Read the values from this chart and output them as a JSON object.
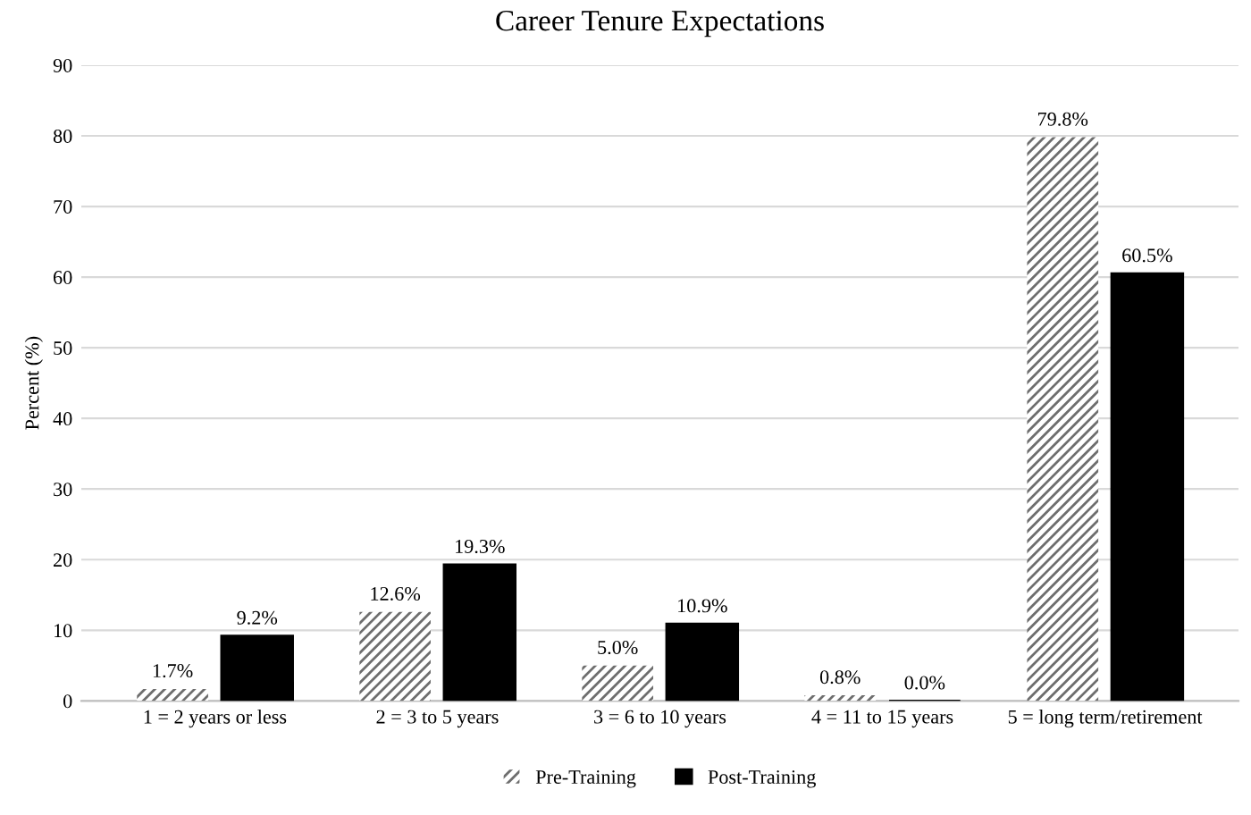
{
  "chart_data": {
    "type": "bar",
    "title": "Career Tenure Expectations",
    "ylabel": "Percent (%)",
    "categories": [
      "1 = 2 years or less",
      "2 = 3 to 5 years",
      "3 = 6 to 10 years",
      "4 = 11 to 15 years",
      "5 = long term/retirement"
    ],
    "series": [
      {
        "name": "Pre-Training",
        "color": "#6e6e6e",
        "values": [
          1.7,
          12.6,
          5.0,
          0.8,
          79.8
        ],
        "value_labels": [
          "1.7%",
          "12.6%",
          "5.0%",
          "0.8%",
          "79.8%"
        ]
      },
      {
        "name": "Post-Training",
        "color": "#000000",
        "values": [
          9.2,
          19.3,
          10.9,
          0.0,
          60.5
        ],
        "value_labels": [
          "9.2%",
          "19.3%",
          "10.9%",
          "0.0%",
          "60.5%"
        ]
      }
    ],
    "ylim": [
      0,
      90
    ],
    "yticks": [
      0,
      10,
      20,
      30,
      40,
      50,
      60,
      70,
      80,
      90
    ],
    "grid": "y",
    "legend": "bottom"
  }
}
